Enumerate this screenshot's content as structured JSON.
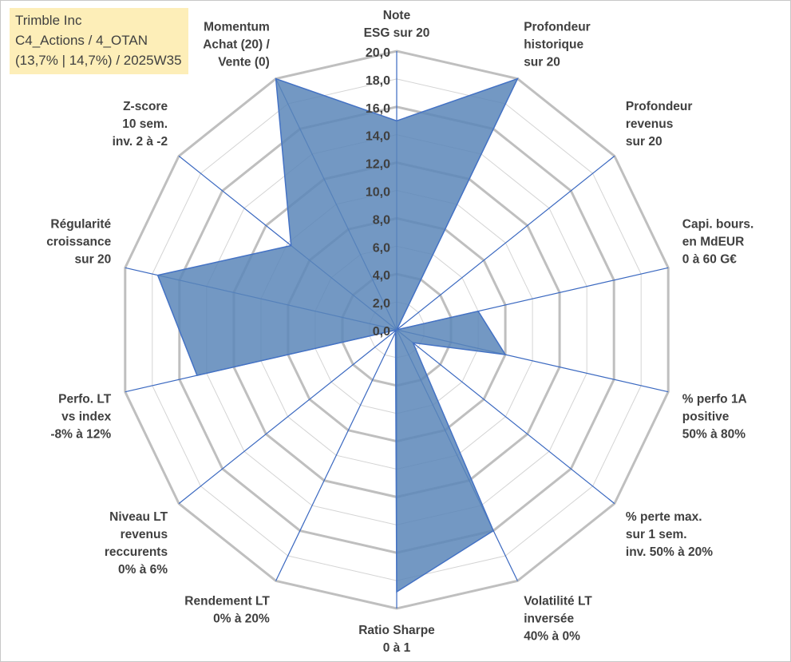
{
  "info": {
    "line1": "Trimble Inc",
    "line2": "C4_Actions / 4_OTAN",
    "line3": "(13,7% | 14,7%) / 2025W35"
  },
  "chart_data": {
    "type": "radar",
    "title": "",
    "rmax": 20,
    "tick_step": 2,
    "tick_labels": [
      "0,0",
      "2,0",
      "4,0",
      "6,0",
      "8,0",
      "10,0",
      "12,0",
      "14,0",
      "16,0",
      "18,0",
      "20,0"
    ],
    "axes": [
      {
        "label": [
          "Note",
          "ESG sur 20"
        ],
        "value": 15.0
      },
      {
        "label": [
          "Profondeur",
          "historique",
          "sur 20"
        ],
        "value": 20.0
      },
      {
        "label": [
          "Profondeur",
          "revenus",
          "sur 20"
        ],
        "value": 0.0
      },
      {
        "label": [
          "Capi. bours.",
          "en MdEUR",
          "0 à 60 G€"
        ],
        "value": 6.0
      },
      {
        "label": [
          "% perfo 1A",
          "positive",
          "50% à 80%"
        ],
        "value": 8.0
      },
      {
        "label": [
          "% perte max.",
          "sur 1 sem.",
          "inv. 50% à 20%"
        ],
        "value": 1.5
      },
      {
        "label": [
          "Volatilité LT",
          "inversée",
          "40% à 0%"
        ],
        "value": 16.0
      },
      {
        "label": [
          "Ratio Sharpe",
          "0 à 1"
        ],
        "value": 18.8
      },
      {
        "label": [
          "Rendement LT",
          "0% à 20%"
        ],
        "value": 0.2
      },
      {
        "label": [
          "Niveau LT",
          "revenus",
          "reccurents",
          "0% à 6%"
        ],
        "value": 0.0
      },
      {
        "label": [
          "Perfo. LT",
          "vs index",
          "-8% à 12%"
        ],
        "value": 14.7
      },
      {
        "label": [
          "Régularité",
          "croissance",
          "sur 20"
        ],
        "value": 17.6
      },
      {
        "label": [
          "Z-score",
          "10 sem.",
          "inv. 2 à -2"
        ],
        "value": 9.7
      },
      {
        "label": [
          "Momentum",
          "Achat (20) /",
          "Vente (0)"
        ],
        "value": 20.0
      }
    ],
    "colors": {
      "fill": "#5b86b9",
      "stroke": "#4472c4",
      "spoke": "#3a68c0",
      "grid": "#bfbfbf"
    }
  }
}
